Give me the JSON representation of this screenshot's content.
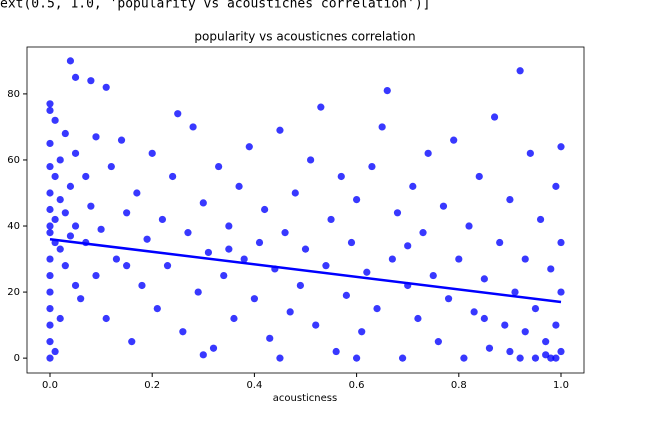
{
  "code_output": "ext(0.5, 1.0, 'popularity vs acousticnes correlation')]",
  "chart_data": {
    "type": "scatter",
    "title": "popularity vs acousticnes correlation",
    "x_label": "acousticness",
    "color": "#0000ff",
    "xlim": [
      -0.045,
      1.045
    ],
    "ylim": [
      -4.5,
      94.2
    ],
    "xticks": [
      {
        "value": 0,
        "label": "0.0"
      },
      {
        "value": 0.2,
        "label": "0.2"
      },
      {
        "value": 0.4,
        "label": "0.4"
      },
      {
        "value": 0.6,
        "label": "0.6"
      },
      {
        "value": 0.8,
        "label": "0.8"
      },
      {
        "value": 1,
        "label": "1.0"
      }
    ],
    "yticks": [
      0,
      20,
      40,
      60,
      80
    ],
    "x": [
      0.0,
      0.0,
      0.01,
      0.0,
      0.0,
      0.01,
      0.0,
      0.0,
      0.01,
      0.0,
      0.0,
      0.01,
      0.0,
      0.0,
      0.0,
      0.0,
      0.0,
      0.0,
      0.0,
      0.01,
      0.02,
      0.02,
      0.02,
      0.03,
      0.03,
      0.03,
      0.04,
      0.04,
      0.04,
      0.05,
      0.05,
      0.05,
      0.06,
      0.07,
      0.07,
      0.08,
      0.08,
      0.09,
      0.09,
      0.1,
      0.11,
      0.11,
      0.12,
      0.13,
      0.14,
      0.15,
      0.16,
      0.17,
      0.18,
      0.19,
      0.2,
      0.21,
      0.22,
      0.23,
      0.24,
      0.25,
      0.26,
      0.27,
      0.28,
      0.29,
      0.3,
      0.31,
      0.32,
      0.33,
      0.34,
      0.35,
      0.36,
      0.37,
      0.38,
      0.39,
      0.4,
      0.41,
      0.42,
      0.43,
      0.44,
      0.45,
      0.46,
      0.47,
      0.48,
      0.49,
      0.5,
      0.51,
      0.52,
      0.53,
      0.54,
      0.55,
      0.56,
      0.57,
      0.58,
      0.59,
      0.6,
      0.61,
      0.62,
      0.63,
      0.64,
      0.65,
      0.66,
      0.67,
      0.68,
      0.69,
      0.7,
      0.71,
      0.72,
      0.73,
      0.74,
      0.75,
      0.76,
      0.77,
      0.78,
      0.79,
      0.8,
      0.81,
      0.82,
      0.83,
      0.84,
      0.85,
      0.86,
      0.87,
      0.88,
      0.89,
      0.9,
      0.91,
      0.92,
      0.92,
      0.93,
      0.94,
      0.95,
      0.96,
      0.97,
      0.98,
      0.98,
      0.99,
      0.99,
      1.0,
      1.0,
      1.0,
      1.0,
      0.99,
      0.97,
      0.95,
      0.93,
      0.9,
      0.6,
      0.45,
      0.3,
      0.85,
      0.7,
      0.35,
      0.15,
      0.05,
      0.02
    ],
    "y": [
      77,
      75,
      72,
      65,
      58,
      55,
      50,
      45,
      42,
      40,
      38,
      35,
      30,
      25,
      20,
      15,
      10,
      5,
      0,
      2,
      60,
      48,
      33,
      68,
      44,
      28,
      90,
      52,
      37,
      85,
      62,
      40,
      18,
      55,
      35,
      84,
      46,
      67,
      25,
      39,
      82,
      12,
      58,
      30,
      66,
      44,
      5,
      50,
      22,
      36,
      62,
      15,
      42,
      28,
      55,
      74,
      8,
      38,
      70,
      20,
      47,
      32,
      3,
      58,
      25,
      40,
      12,
      52,
      30,
      64,
      18,
      35,
      45,
      6,
      27,
      69,
      38,
      14,
      50,
      22,
      33,
      60,
      10,
      76,
      28,
      42,
      2,
      55,
      19,
      35,
      48,
      8,
      26,
      58,
      15,
      70,
      81,
      30,
      44,
      0,
      22,
      52,
      12,
      38,
      62,
      25,
      5,
      46,
      18,
      66,
      30,
      0,
      40,
      14,
      55,
      24,
      3,
      73,
      35,
      10,
      48,
      20,
      87,
      0,
      30,
      62,
      15,
      42,
      5,
      27,
      0,
      52,
      10,
      64,
      35,
      20,
      2,
      0,
      1,
      0,
      8,
      2,
      0,
      0,
      1,
      12,
      34,
      33,
      28,
      22,
      12
    ],
    "regression": {
      "x": [
        0,
        1
      ],
      "y": [
        36,
        17
      ]
    }
  }
}
